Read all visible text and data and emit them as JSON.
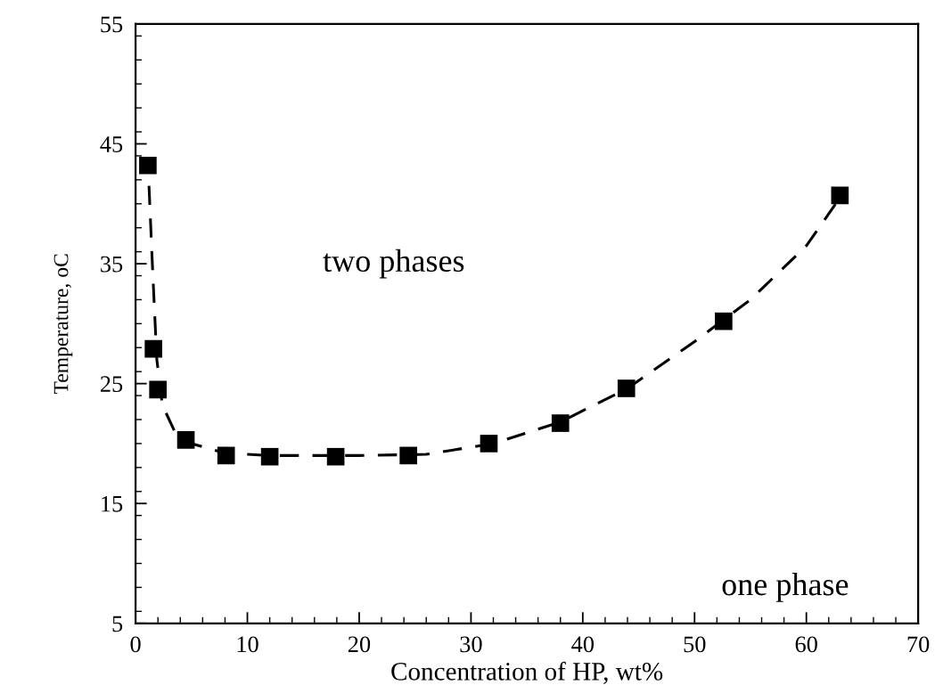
{
  "chart_data": {
    "type": "scatter",
    "xlabel": "Concentration of HP, wt%",
    "ylabel": "Temperature, oC",
    "xlim": [
      0,
      70
    ],
    "xticks": [
      0,
      10,
      20,
      30,
      40,
      50,
      60,
      70
    ],
    "ylim": [
      5,
      55
    ],
    "yticks": [
      5,
      15,
      25,
      35,
      45,
      55
    ],
    "grid": false,
    "legend": false,
    "series": [
      {
        "marker": "square",
        "color": "#000000",
        "x": [
          1.1,
          1.6,
          2.0,
          4.5,
          8.1,
          12.0,
          17.9,
          24.4,
          31.6,
          38.0,
          43.9,
          52.6,
          63.0
        ],
        "values": [
          43.2,
          27.9,
          24.5,
          20.3,
          19.0,
          18.9,
          18.9,
          19.0,
          20.0,
          21.7,
          24.6,
          30.2,
          40.7
        ]
      },
      {
        "type": "line",
        "line_style": "dashed",
        "marker": "none",
        "color": "#000000",
        "x": [
          1.2,
          1.5,
          1.9,
          2.4,
          3.5,
          5.0,
          8.0,
          12.0,
          20.0,
          26.0,
          32.0,
          38.0,
          44.0,
          50.0,
          55.0,
          60.0,
          63.0
        ],
        "values": [
          41.5,
          35.0,
          27.0,
          23.2,
          21.0,
          20.0,
          19.2,
          19.0,
          19.0,
          19.1,
          20.0,
          21.8,
          24.6,
          28.5,
          32.0,
          36.5,
          40.5
        ]
      }
    ],
    "annotations": [
      "two phases",
      "one phase"
    ]
  }
}
